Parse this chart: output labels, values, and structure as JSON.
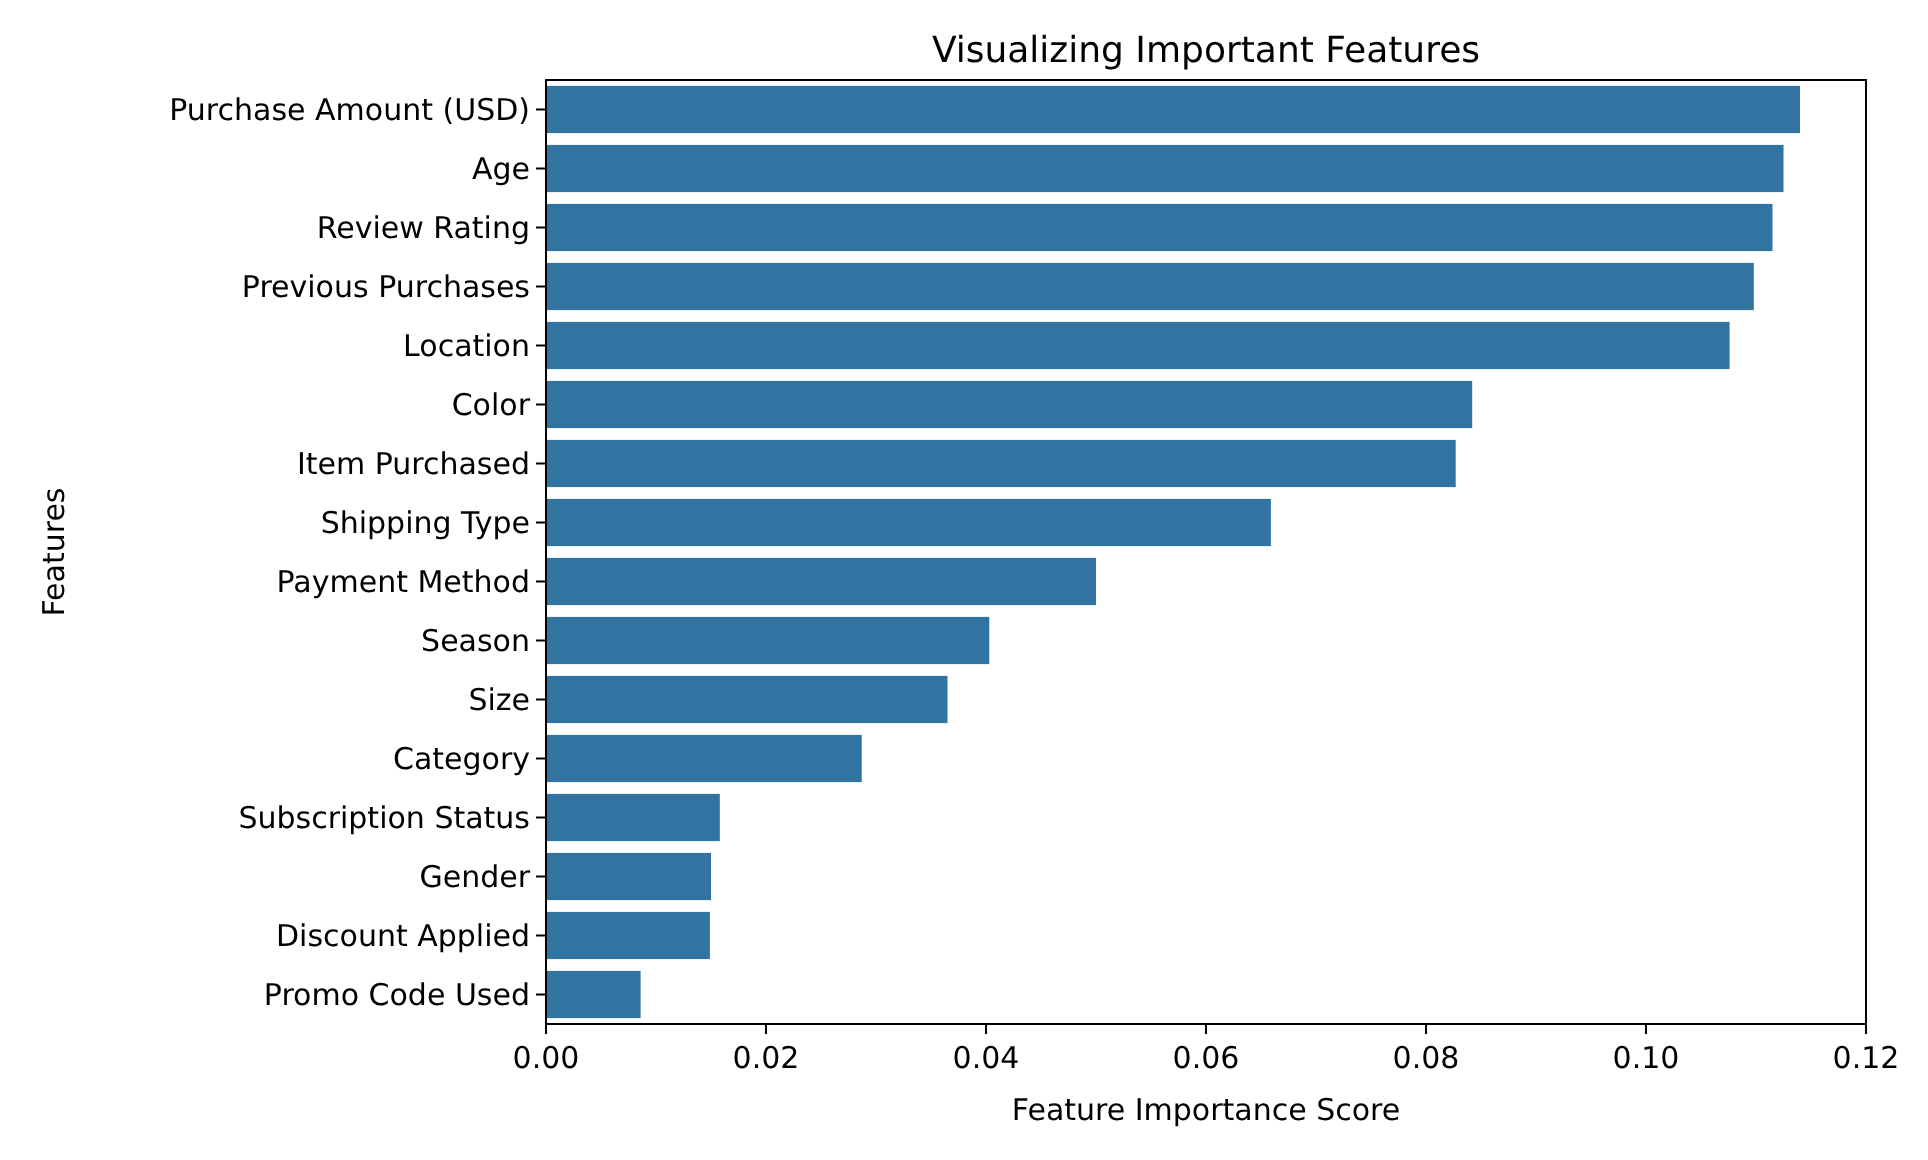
{
  "chart_data": {
    "type": "bar",
    "orientation": "horizontal",
    "title": "Visualizing Important Features",
    "xlabel": "Feature Importance Score",
    "ylabel": "Features",
    "categories": [
      "Purchase Amount (USD)",
      "Age",
      "Review Rating",
      "Previous Purchases",
      "Location",
      "Color",
      "Item Purchased",
      "Shipping Type",
      "Payment Method",
      "Season",
      "Size",
      "Category",
      "Subscription Status",
      "Gender",
      "Discount Applied",
      "Promo Code Used"
    ],
    "values": [
      0.114,
      0.1125,
      0.1115,
      0.1098,
      0.1076,
      0.0842,
      0.0827,
      0.0659,
      0.05,
      0.0403,
      0.0365,
      0.0287,
      0.0158,
      0.015,
      0.0149,
      0.0086
    ],
    "color": "#3274a1",
    "xlim": [
      0,
      0.12
    ],
    "xticks": [
      {
        "value": 0,
        "label": "0.00"
      },
      {
        "value": 0.02,
        "label": "0.02"
      },
      {
        "value": 0.04,
        "label": "0.04"
      },
      {
        "value": 0.06,
        "label": "0.06"
      },
      {
        "value": 0.08,
        "label": "0.08"
      },
      {
        "value": 0.1,
        "label": "0.10"
      },
      {
        "value": 0.12,
        "label": "0.12"
      }
    ],
    "grid": false
  }
}
